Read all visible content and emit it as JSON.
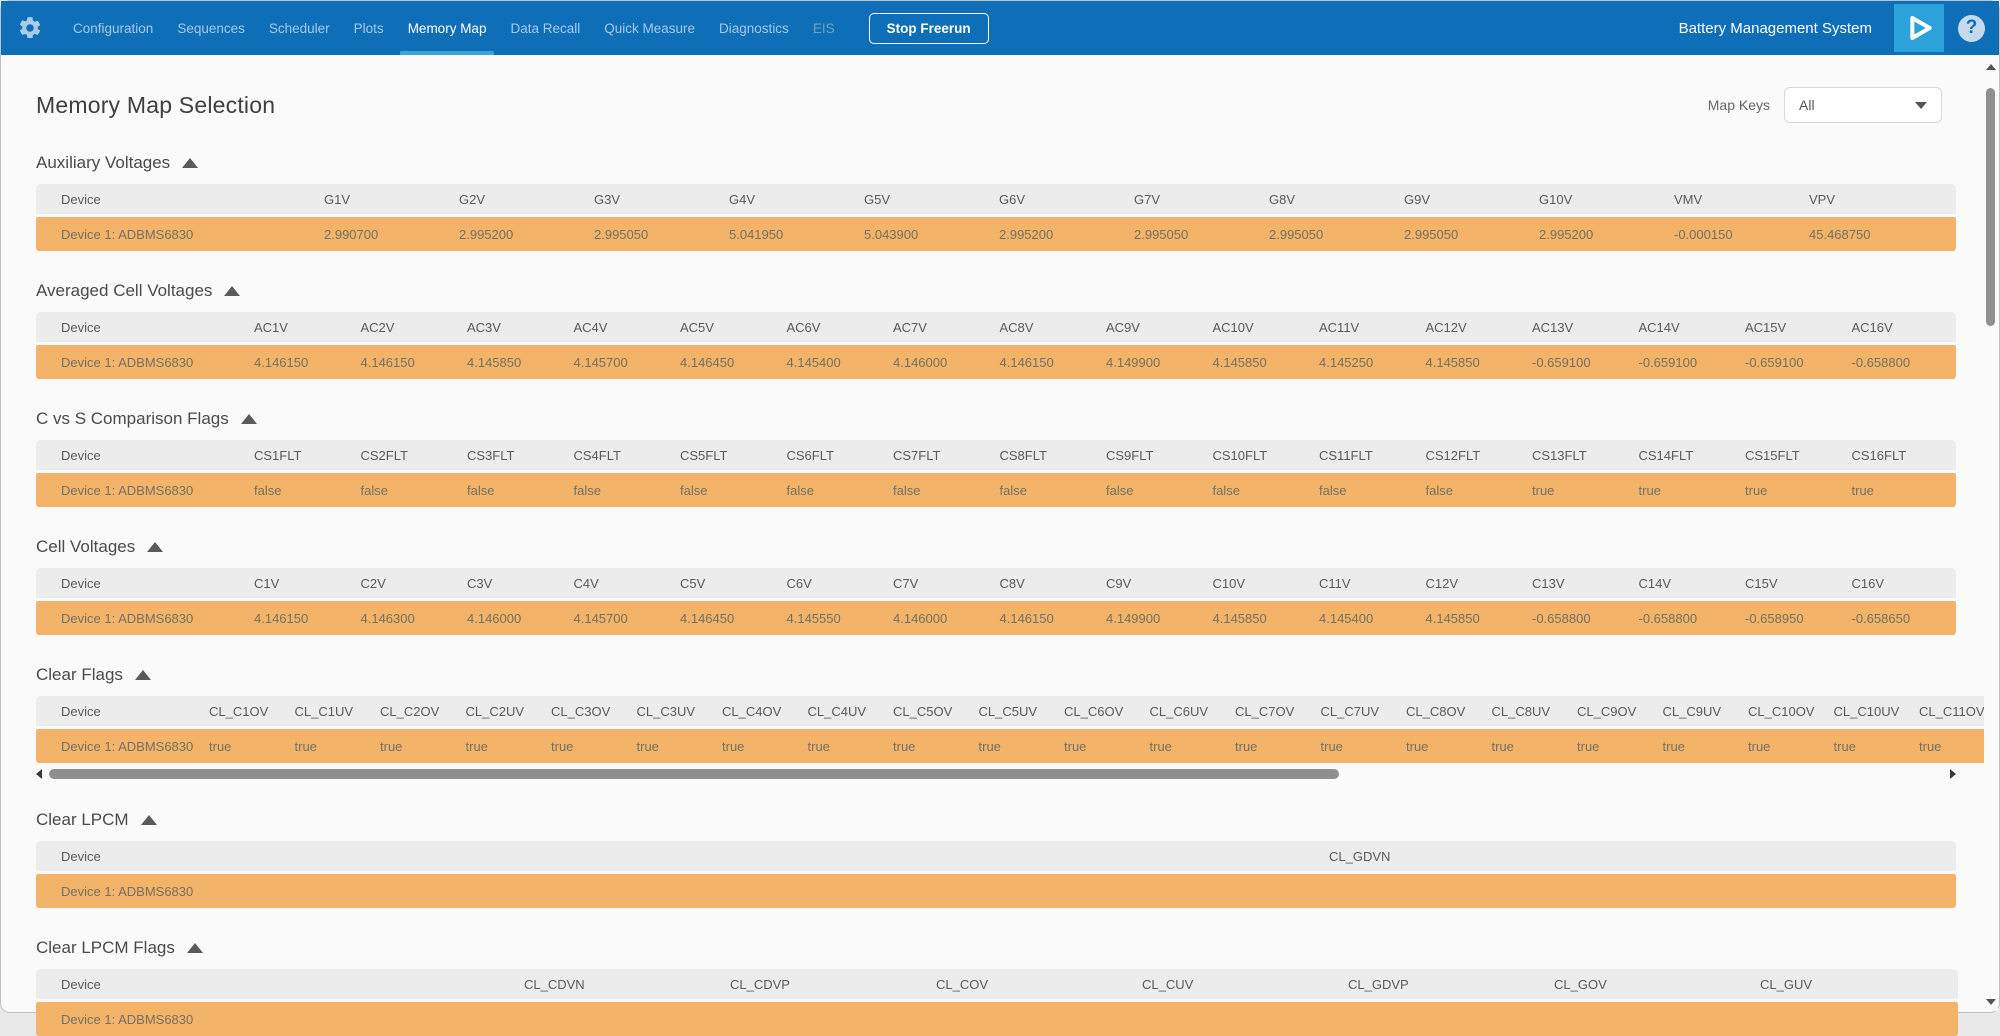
{
  "colors": {
    "nav_blue": "#0e6fb8",
    "accent_blue": "#2ba2da",
    "row_orange": "#f3b46a",
    "header_gray": "#ececec"
  },
  "nav": {
    "items": [
      {
        "label": "Configuration",
        "state": "normal"
      },
      {
        "label": "Sequences",
        "state": "normal"
      },
      {
        "label": "Scheduler",
        "state": "normal"
      },
      {
        "label": "Plots",
        "state": "normal"
      },
      {
        "label": "Memory Map",
        "state": "active"
      },
      {
        "label": "Data Recall",
        "state": "normal"
      },
      {
        "label": "Quick Measure",
        "state": "normal"
      },
      {
        "label": "Diagnostics",
        "state": "normal"
      },
      {
        "label": "EIS",
        "state": "disabled"
      }
    ],
    "stop_button_label": "Stop Freerun",
    "app_title": "Battery Management System",
    "icons": {
      "settings": "gear-icon",
      "run": "play-icon",
      "help": "question-mark-icon"
    }
  },
  "page": {
    "title": "Memory Map Selection",
    "map_keys_label": "Map Keys",
    "map_keys_value": "All"
  },
  "table_common": {
    "device_column_header": "Device",
    "device_name": "Device 1: ADBMS6830"
  },
  "sections": [
    {
      "title": "Auxiliary Voltages",
      "columns": [
        "G1V",
        "G2V",
        "G3V",
        "G4V",
        "G5V",
        "G6V",
        "G7V",
        "G8V",
        "G9V",
        "G10V",
        "VMV",
        "VPV"
      ],
      "values": [
        "2.990700",
        "2.995200",
        "2.995050",
        "5.041950",
        "5.043900",
        "2.995200",
        "2.995050",
        "2.995050",
        "2.995050",
        "2.995200",
        "-0.000150",
        "45.468750"
      ]
    },
    {
      "title": "Averaged Cell Voltages",
      "columns": [
        "AC1V",
        "AC2V",
        "AC3V",
        "AC4V",
        "AC5V",
        "AC6V",
        "AC7V",
        "AC8V",
        "AC9V",
        "AC10V",
        "AC11V",
        "AC12V",
        "AC13V",
        "AC14V",
        "AC15V",
        "AC16V"
      ],
      "values": [
        "4.146150",
        "4.146150",
        "4.145850",
        "4.145700",
        "4.146450",
        "4.145400",
        "4.146000",
        "4.146150",
        "4.149900",
        "4.145850",
        "4.145250",
        "4.145850",
        "-0.659100",
        "-0.659100",
        "-0.659100",
        "-0.658800"
      ]
    },
    {
      "title": "C vs S Comparison Flags",
      "columns": [
        "CS1FLT",
        "CS2FLT",
        "CS3FLT",
        "CS4FLT",
        "CS5FLT",
        "CS6FLT",
        "CS7FLT",
        "CS8FLT",
        "CS9FLT",
        "CS10FLT",
        "CS11FLT",
        "CS12FLT",
        "CS13FLT",
        "CS14FLT",
        "CS15FLT",
        "CS16FLT"
      ],
      "values": [
        "false",
        "false",
        "false",
        "false",
        "false",
        "false",
        "false",
        "false",
        "false",
        "false",
        "false",
        "false",
        "true",
        "true",
        "true",
        "true"
      ]
    },
    {
      "title": "Cell Voltages",
      "columns": [
        "C1V",
        "C2V",
        "C3V",
        "C4V",
        "C5V",
        "C6V",
        "C7V",
        "C8V",
        "C9V",
        "C10V",
        "C11V",
        "C12V",
        "C13V",
        "C14V",
        "C15V",
        "C16V"
      ],
      "values": [
        "4.146150",
        "4.146300",
        "4.146000",
        "4.145700",
        "4.146450",
        "4.145550",
        "4.146000",
        "4.146150",
        "4.149900",
        "4.145850",
        "4.145400",
        "4.145850",
        "-0.658800",
        "-0.658800",
        "-0.658950",
        "-0.658650"
      ]
    },
    {
      "title": "Clear Flags",
      "columns": [
        "CL_C1OV",
        "CL_C1UV",
        "CL_C2OV",
        "CL_C2UV",
        "CL_C3OV",
        "CL_C3UV",
        "CL_C4OV",
        "CL_C4UV",
        "CL_C5OV",
        "CL_C5UV",
        "CL_C6OV",
        "CL_C6UV",
        "CL_C7OV",
        "CL_C7UV",
        "CL_C8OV",
        "CL_C8UV",
        "CL_C9OV",
        "CL_C9UV",
        "CL_C10OV",
        "CL_C10UV",
        "CL_C11OV"
      ],
      "values": [
        "true",
        "true",
        "true",
        "true",
        "true",
        "true",
        "true",
        "true",
        "true",
        "true",
        "true",
        "true",
        "true",
        "true",
        "true",
        "true",
        "true",
        "true",
        "true",
        "true",
        "true"
      ]
    },
    {
      "title": "Clear LPCM",
      "columns": [
        "CL_GDVN"
      ],
      "values": [
        ""
      ]
    },
    {
      "title": "Clear LPCM Flags",
      "columns": [
        "CL_CDVN",
        "CL_CDVP",
        "CL_COV",
        "CL_CUV",
        "CL_GDVP",
        "CL_GOV",
        "CL_GUV"
      ],
      "values": [
        "",
        "",
        "",
        "",
        "",
        "",
        ""
      ]
    }
  ]
}
